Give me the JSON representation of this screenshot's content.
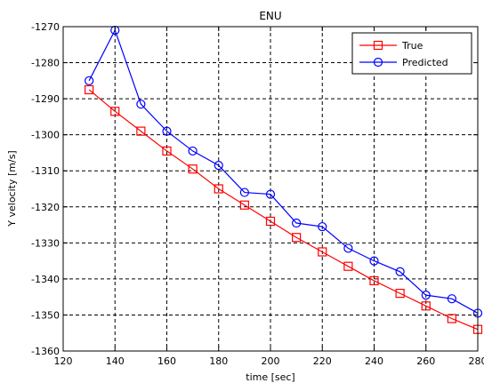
{
  "chart_data": {
    "type": "line",
    "title": "ENU",
    "xlabel": "time [sec]",
    "ylabel": "Y velocity [m/s]",
    "xlim": [
      120,
      280
    ],
    "ylim": [
      -1360,
      -1270
    ],
    "xticks": [
      120,
      140,
      160,
      180,
      200,
      220,
      240,
      260,
      280
    ],
    "yticks": [
      -1270,
      -1280,
      -1290,
      -1300,
      -1310,
      -1320,
      -1330,
      -1340,
      -1350,
      -1360
    ],
    "grid": true,
    "legend_position": "top-right",
    "x": [
      130,
      140,
      150,
      160,
      170,
      180,
      190,
      200,
      210,
      220,
      230,
      240,
      250,
      260,
      270,
      280
    ],
    "series": [
      {
        "name": "True",
        "color": "#ff0000",
        "marker": "square",
        "values": [
          -1287.5,
          -1293.5,
          -1299,
          -1304.5,
          -1309.5,
          -1315,
          -1319.5,
          -1324,
          -1328.5,
          -1332.5,
          -1336.5,
          -1340.5,
          -1344,
          -1347.5,
          -1351,
          -1354
        ]
      },
      {
        "name": "Predicted",
        "color": "#0000ff",
        "marker": "circle",
        "values": [
          -1285,
          -1271,
          -1291.5,
          -1299,
          -1304.5,
          -1308.5,
          -1316,
          -1316.5,
          -1324.5,
          -1325.5,
          -1331.5,
          -1335,
          -1338,
          -1344.5,
          -1345.5,
          -1349.5
        ]
      }
    ]
  }
}
